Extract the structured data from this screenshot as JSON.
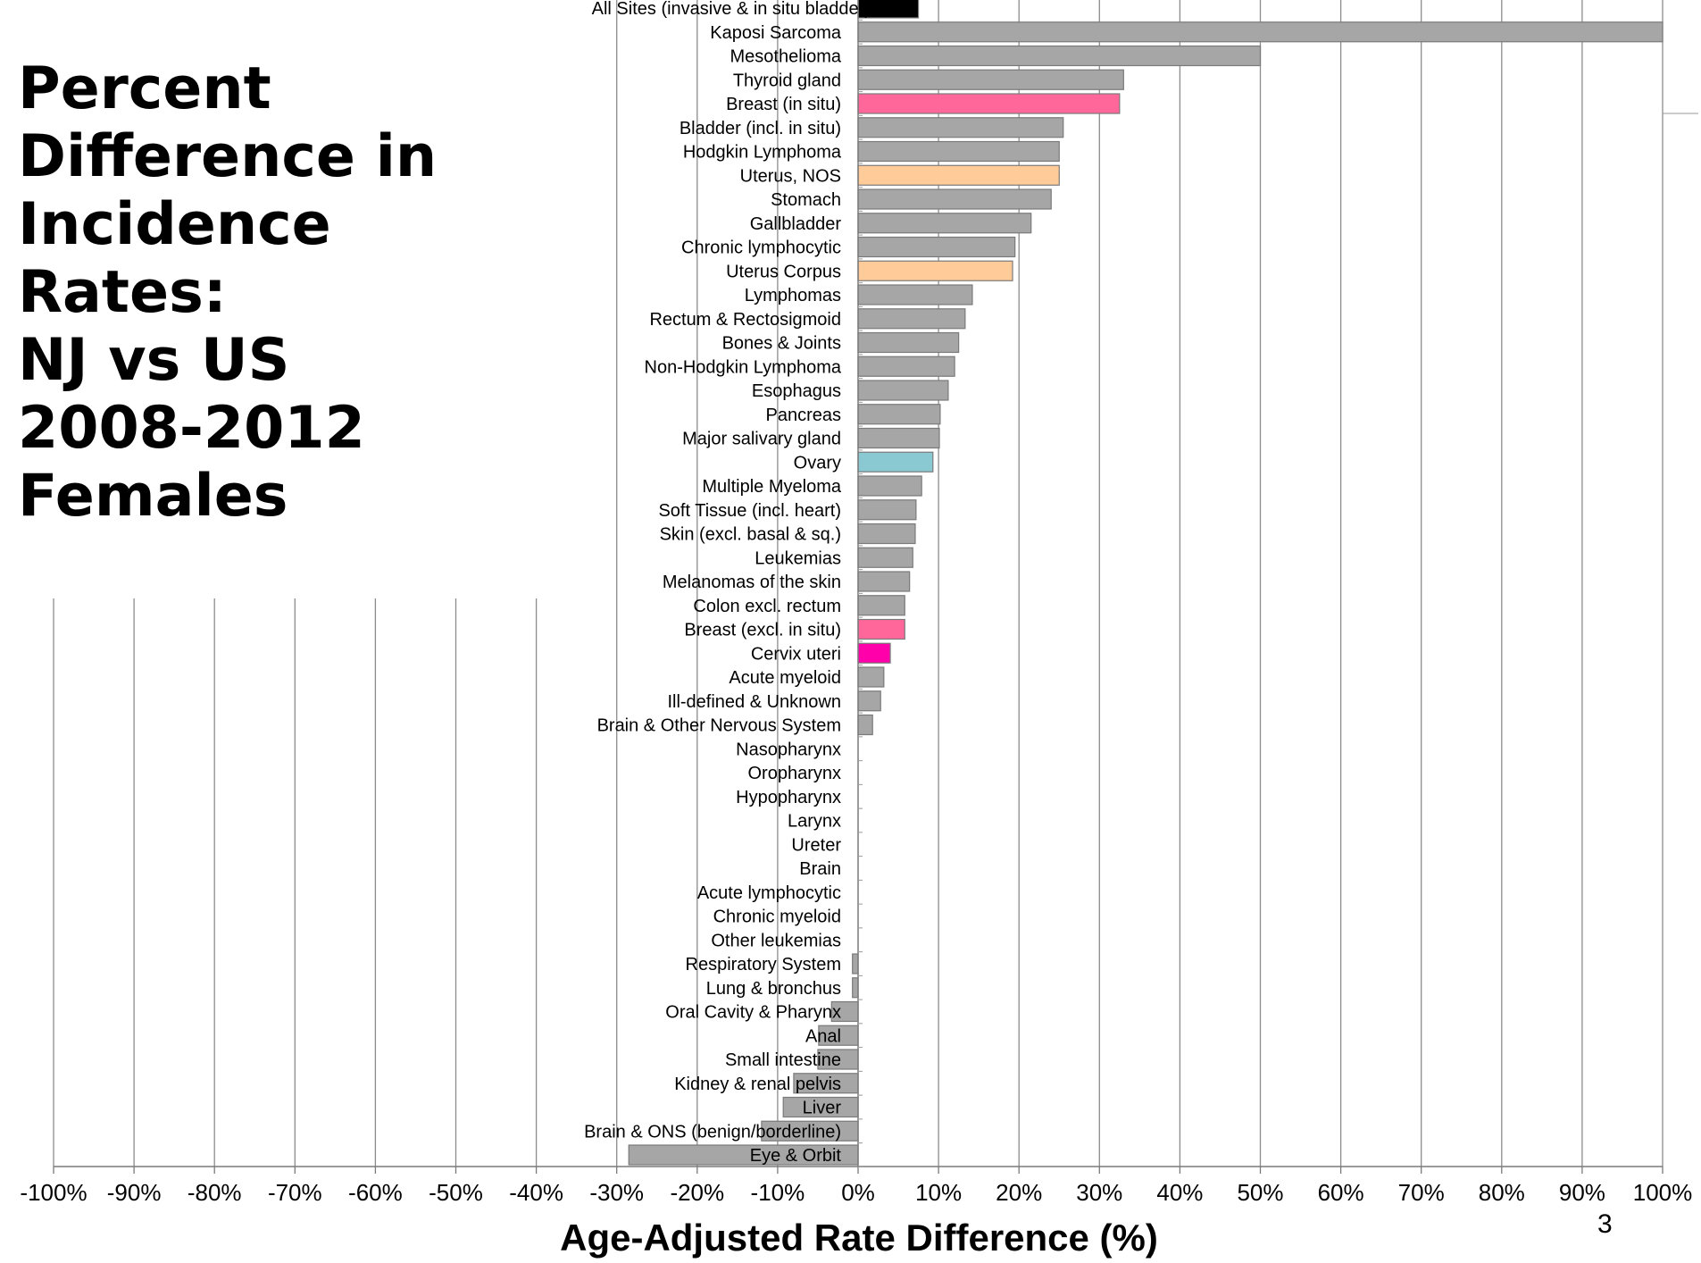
{
  "slide": {
    "title_lines": [
      "Percent",
      "Difference in",
      "Incidence",
      "Rates:",
      "NJ vs US",
      "2008-2012",
      "Females"
    ],
    "page_number": "3"
  },
  "colors": {
    "default_bar": "#a6a6a6",
    "all_sites": "#000000",
    "breast_in_situ": "#ff6699",
    "uterus": "#ffcc99",
    "ovary": "#8ac8d2",
    "breast_excl_in_situ": "#ff6699",
    "cervix": "#ff00aa",
    "gridline": "#8c8c8c"
  },
  "chart_data": {
    "type": "bar",
    "orientation": "horizontal",
    "title": "",
    "xlabel": "Age-Adjusted Rate Difference (%)",
    "ylabel": "",
    "xlim": [
      -100,
      100
    ],
    "xticks": [
      "-100%",
      "-90%",
      "-80%",
      "-70%",
      "-60%",
      "-50%",
      "-40%",
      "-30%",
      "-20%",
      "-10%",
      "0%",
      "10%",
      "20%",
      "30%",
      "40%",
      "50%",
      "60%",
      "70%",
      "80%",
      "90%",
      "100%"
    ],
    "grid": true,
    "categories": [
      "All Sites (invasive  & in situ bladder)",
      "Kaposi Sarcoma",
      "Mesothelioma",
      "Thyroid  gland",
      "Breast (in situ)",
      "Bladder  (incl. in situ)",
      "Hodgkin  Lymphoma",
      "Uterus, NOS",
      "Stomach",
      "Gallbladder",
      "Chronic lymphocytic",
      "Uterus Corpus",
      "Lymphomas",
      "Rectum & Rectosigmoid",
      "Bones & Joints",
      "Non-Hodgkin Lymphoma",
      "Esophagus",
      "Pancreas",
      "Major salivary gland",
      "Ovary",
      "Multiple Myeloma",
      "Soft Tissue (incl. heart)",
      "Skin (excl. basal & sq.)",
      "Leukemias",
      "Melanomas  of the skin",
      "Colon excl. rectum",
      "Breast (excl. in situ)",
      "Cervix uteri",
      "Acute myeloid",
      "Ill-defined  & Unknown",
      "Brain & Other Nervous System",
      "Nasopharynx",
      "Oropharynx",
      "Hypopharynx",
      "Larynx",
      "Ureter",
      "Brain",
      "Acute lymphocytic",
      "Chronic myeloid",
      "Other leukemias",
      "Respiratory  System",
      "Lung & bronchus",
      "Oral Cavity & Pharynx",
      "Anal",
      "Small intestine",
      "Kidney & renal pelvis",
      "Liver",
      "Brain & ONS (benign/borderline)",
      "Eye & Orbit"
    ],
    "values": [
      7.5,
      100,
      50,
      33,
      32.5,
      25.5,
      25,
      25,
      24,
      21.5,
      19.5,
      19.2,
      14.2,
      13.3,
      12.5,
      12,
      11.2,
      10.2,
      10.1,
      9.3,
      7.9,
      7.2,
      7.1,
      6.8,
      6.4,
      5.8,
      5.8,
      4,
      3.2,
      2.8,
      1.8,
      0,
      0,
      0,
      0,
      0,
      0,
      0,
      0,
      0,
      -0.7,
      -0.7,
      -3.3,
      -4.9,
      -5,
      -8,
      -9.3,
      -12,
      -28.5
    ],
    "bar_colors": [
      "all_sites",
      null,
      null,
      null,
      "breast_in_situ",
      null,
      null,
      "uterus",
      null,
      null,
      null,
      "uterus",
      null,
      null,
      null,
      null,
      null,
      null,
      null,
      "ovary",
      null,
      null,
      null,
      null,
      null,
      null,
      "breast_excl_in_situ",
      "cervix",
      null,
      null,
      null,
      null,
      null,
      null,
      null,
      null,
      null,
      null,
      null,
      null,
      null,
      null,
      null,
      null,
      null,
      null,
      null,
      null,
      null
    ]
  }
}
